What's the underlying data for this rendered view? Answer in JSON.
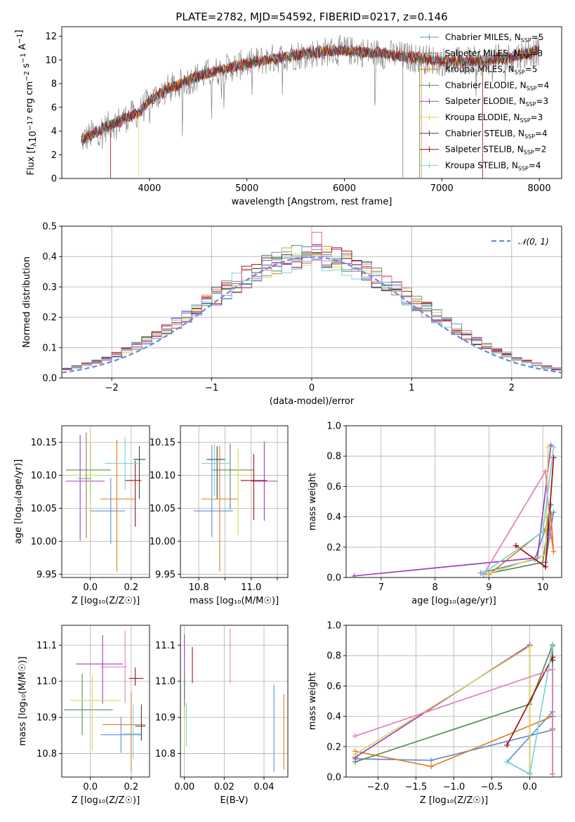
{
  "figure": {
    "title": "PLATE=2782, MJD=54592, FIBERID=0217, z=0.146"
  },
  "chart_data": [
    {
      "id": "spectrum",
      "type": "line",
      "xlabel": "wavelength [Angstrom, rest frame]",
      "ylabel": "Flux [f_λ 10^-17 erg cm^-2 s^-1 A^-1]",
      "xlim": [
        3100,
        8230
      ],
      "ylim": [
        0,
        12.8
      ],
      "xticks": [
        "4000",
        "5000",
        "6000",
        "7000",
        "8000"
      ],
      "yticks": [
        "0",
        "2",
        "4",
        "6",
        "8",
        "10",
        "12"
      ],
      "grid": false,
      "legend_position": "top-right",
      "continuum_x": [
        3300,
        3500,
        3700,
        3900,
        4000,
        4200,
        4500,
        4800,
        5000,
        5200,
        5500,
        5800,
        6000,
        6300,
        6500,
        6800,
        7100,
        7400,
        7700,
        8000
      ],
      "continuum_y": [
        3.2,
        4.1,
        4.9,
        5.6,
        6.6,
        7.6,
        8.6,
        9.3,
        9.7,
        10.0,
        10.4,
        10.7,
        10.8,
        10.6,
        10.4,
        10.1,
        9.8,
        9.9,
        10.2,
        10.8
      ],
      "series": [
        {
          "label": "Chabrier MILES, N",
          "sub": "SSP",
          "val": "=5",
          "color": "#5d8fd5"
        },
        {
          "label": "Salpeter MILES, N",
          "sub": "SSP",
          "val": "=3",
          "color": "#7f7f7f"
        },
        {
          "label": "Kroupa MILES, N",
          "sub": "SSP",
          "val": "=5",
          "color": "#e07f1f"
        },
        {
          "label": "Chabrier ELODIE, N",
          "sub": "SSP",
          "val": "=4",
          "color": "#5a8a5a"
        },
        {
          "label": "Salpeter ELODIE, N",
          "sub": "SSP",
          "val": "=3",
          "color": "#9d3fbf"
        },
        {
          "label": "Kroupa ELODIE, N",
          "sub": "SSP",
          "val": "=3",
          "color": "#d8d85a"
        },
        {
          "label": "Chabrier STELIB, N",
          "sub": "SSP",
          "val": "=4",
          "color": "#404040"
        },
        {
          "label": "Salpeter STELIB, N",
          "sub": "SSP",
          "val": "=2",
          "color": "#a01010"
        },
        {
          "label": "Kroupa STELIB, N",
          "sub": "SSP",
          "val": "=4",
          "color": "#78d4d8"
        }
      ]
    },
    {
      "id": "residuals",
      "type": "histogram",
      "xlabel": "(data-model)/error",
      "ylabel": "Normed distribution",
      "xlim": [
        -2.5,
        2.5
      ],
      "ylim": [
        0,
        0.5
      ],
      "xticks": [
        "−2",
        "−1",
        "0",
        "1",
        "2"
      ],
      "yticks": [
        "0.0",
        "0.1",
        "0.2",
        "0.3",
        "0.4",
        "0.5"
      ],
      "grid": true,
      "bin_width": 0.1,
      "legend_position": "top-right",
      "legend_label": "𝒩(0, 1)",
      "gaussian_color": "#5d8fd5",
      "spike_bin": {
        "x": 0.05,
        "value": 0.48,
        "color": "#e27fbf"
      },
      "hist_colors": [
        "#5d8fd5",
        "#7f7f7f",
        "#e07f1f",
        "#5a8a5a",
        "#9d3fbf",
        "#d8d85a",
        "#404040",
        "#a01010",
        "#78d4d8",
        "#e27fbf"
      ]
    },
    {
      "id": "age_vs_Z",
      "type": "errorbar",
      "xlabel": "Z [log₁₀(Z/Z☉)]",
      "ylabel": "age  [log₁₀(age/yr)]",
      "xlim": [
        -0.14,
        0.29
      ],
      "ylim": [
        9.945,
        10.175
      ],
      "xticks": [
        "0.0",
        "0.2"
      ],
      "yticks": [
        "9.95",
        "10.00",
        "10.05",
        "10.10",
        "10.15"
      ],
      "grid": true,
      "points": [
        {
          "x": 0.1,
          "y": 10.046,
          "xerr": [
            0.1,
            0.07
          ],
          "yerr": [
            0.05,
            0.05
          ],
          "color": "#5d8fd5"
        },
        {
          "x": 0.13,
          "y": 10.064,
          "xerr": [
            0.08,
            0.09
          ],
          "yerr": [
            0.11,
            0.09
          ],
          "color": "#e07f1f"
        },
        {
          "x": 0.0,
          "y": 10.108,
          "xerr": [
            0.12,
            0.1
          ],
          "yerr": [
            0.04,
            0.04
          ],
          "color": "#5a8a5a"
        },
        {
          "x": -0.05,
          "y": 10.091,
          "xerr": [
            0.07,
            0.12
          ],
          "yerr": [
            0.09,
            0.07
          ],
          "color": "#9d3fbf"
        },
        {
          "x": 0.0,
          "y": 10.1,
          "xerr": [
            0.1,
            0.05
          ],
          "yerr": [
            0.09,
            0.06
          ],
          "color": "#d8d85a"
        },
        {
          "x": 0.24,
          "y": 10.124,
          "xerr": [
            0.03,
            0.03
          ],
          "yerr": [
            0.06,
            0.02
          ],
          "color": "#404040"
        },
        {
          "x": 0.22,
          "y": 10.092,
          "xerr": [
            0.05,
            0.03
          ],
          "yerr": [
            0.07,
            0.03
          ],
          "color": "#a01010"
        },
        {
          "x": 0.17,
          "y": 10.118,
          "xerr": [
            0.1,
            0.08
          ],
          "yerr": [
            0.04,
            0.04
          ],
          "color": "#78d4d8"
        },
        {
          "x": -0.02,
          "y": 10.095,
          "xerr": [
            0.04,
            0.02
          ],
          "yerr": [
            0.09,
            0.07
          ],
          "color": "#7f7f7f"
        }
      ]
    },
    {
      "id": "age_vs_mass",
      "type": "errorbar",
      "xlabel": "mass [log₁₀(M/M☉)]",
      "ylabel": "",
      "xlim": [
        10.73,
        11.14
      ],
      "ylim": [
        9.945,
        10.175
      ],
      "xticks": [
        "10.8",
        "10.9",
        "11.0",
        "11.1"
      ],
      "xticks_labeled": [
        "10.8",
        "",
        "11.0",
        ""
      ],
      "yticks": [
        "9.95",
        "10.00",
        "10.05",
        "10.10",
        "10.15"
      ],
      "grid": true,
      "points": [
        {
          "x": 10.85,
          "y": 10.046,
          "xerr": [
            0.07,
            0.08
          ],
          "yerr": [
            0.04,
            0.1
          ],
          "color": "#5d8fd5"
        },
        {
          "x": 10.88,
          "y": 10.064,
          "xerr": [
            0.07,
            0.07
          ],
          "yerr": [
            0.11,
            0.08
          ],
          "color": "#e07f1f"
        },
        {
          "x": 10.92,
          "y": 10.108,
          "xerr": [
            0.07,
            0.09
          ],
          "yerr": [
            0.06,
            0.04
          ],
          "color": "#5a8a5a"
        },
        {
          "x": 11.05,
          "y": 10.091,
          "xerr": [
            0.05,
            0.05
          ],
          "yerr": [
            0.06,
            0.06
          ],
          "color": "#9d3fbf"
        },
        {
          "x": 10.95,
          "y": 10.1,
          "xerr": [
            0.03,
            0.05
          ],
          "yerr": [
            0.09,
            0.04
          ],
          "color": "#d8d85a"
        },
        {
          "x": 10.87,
          "y": 10.124,
          "xerr": [
            0.04,
            0.03
          ],
          "yerr": [
            0.06,
            0.02
          ],
          "color": "#404040"
        },
        {
          "x": 11.01,
          "y": 10.092,
          "xerr": [
            0.05,
            0.05
          ],
          "yerr": [
            0.06,
            0.04
          ],
          "color": "#a01010"
        },
        {
          "x": 10.86,
          "y": 10.118,
          "xerr": [
            0.05,
            0.06
          ],
          "yerr": [
            0.05,
            0.03
          ],
          "color": "#78d4d8"
        }
      ]
    },
    {
      "id": "massweight_vs_age",
      "type": "line",
      "xlabel": "age  [log₁₀(age/yr)]",
      "ylabel": "mass weight",
      "xlim": [
        6.35,
        10.35
      ],
      "ylim": [
        0,
        1
      ],
      "xticks": [
        "7",
        "8",
        "9",
        "10"
      ],
      "yticks": [
        "0.0",
        "0.2",
        "0.4",
        "0.6",
        "0.8",
        "1.0"
      ],
      "grid": true,
      "series": [
        {
          "color": "#5d8fd5",
          "x": [
            8.85,
            9.85,
            10.15,
            10.05,
            10.2
          ],
          "y": [
            0.03,
            0.12,
            0.42,
            0.1,
            0.43
          ]
        },
        {
          "color": "#e07f1f",
          "x": [
            9.0,
            10.05,
            10.1,
            10.2,
            10.15
          ],
          "y": [
            0.02,
            0.32,
            0.4,
            0.17,
            0.41
          ]
        },
        {
          "color": "#5a8a5a",
          "x": [
            8.9,
            10.0,
            10.15,
            10.1
          ],
          "y": [
            0.02,
            0.1,
            0.48,
            0.4
          ]
        },
        {
          "color": "#9d3fbf",
          "x": [
            6.5,
            9.9,
            10.15
          ],
          "y": [
            0.01,
            0.13,
            0.87
          ]
        },
        {
          "color": "#d8d85a",
          "x": [
            8.95,
            10.05,
            10.1
          ],
          "y": [
            0.02,
            0.15,
            0.86
          ]
        },
        {
          "color": "#a01010",
          "x": [
            9.5,
            10.05,
            10.2
          ],
          "y": [
            0.21,
            0.07,
            0.79
          ]
        },
        {
          "color": "#e27fbf",
          "x": [
            8.9,
            10.05,
            10.15
          ],
          "y": [
            0.02,
            0.7,
            0.27
          ]
        },
        {
          "color": "#78d4d8",
          "x": [
            8.9,
            10.0,
            10.2
          ],
          "y": [
            0.03,
            0.3,
            0.86
          ]
        }
      ]
    },
    {
      "id": "mass_vs_Z",
      "type": "errorbar",
      "xlabel": "Z [log₁₀(Z/Z☉)]",
      "ylabel": "mass [log₁₀(M/M☉)]",
      "xlim": [
        -0.14,
        0.29
      ],
      "ylim": [
        10.735,
        11.155
      ],
      "xticks": [
        "0.0",
        "0.2"
      ],
      "yticks": [
        "10.8",
        "10.9",
        "11.0",
        "11.1"
      ],
      "grid": true,
      "points": [
        {
          "x": 0.15,
          "y": 10.852,
          "xerr": [
            0.1,
            0.1
          ],
          "yerr": [
            0.05,
            0.05
          ],
          "color": "#5d8fd5"
        },
        {
          "x": 0.2,
          "y": 10.88,
          "xerr": [
            0.14,
            0.07
          ],
          "yerr": [
            0.13,
            0.09
          ],
          "color": "#e07f1f"
        },
        {
          "x": -0.04,
          "y": 10.921,
          "xerr": [
            0.09,
            0.15
          ],
          "yerr": [
            0.07,
            0.1
          ],
          "color": "#5a8a5a"
        },
        {
          "x": 0.06,
          "y": 11.048,
          "xerr": [
            0.13,
            0.1
          ],
          "yerr": [
            0.11,
            0.08
          ],
          "color": "#9d3fbf"
        },
        {
          "x": 0.01,
          "y": 10.947,
          "xerr": [
            0.11,
            0.14
          ],
          "yerr": [
            0.14,
            0.07
          ],
          "color": "#d8d85a"
        },
        {
          "x": 0.25,
          "y": 10.876,
          "xerr": [
            0.03,
            0.02
          ],
          "yerr": [
            0.04,
            0.06
          ],
          "color": "#404040"
        },
        {
          "x": 0.22,
          "y": 11.008,
          "xerr": [
            0.03,
            0.04
          ],
          "yerr": [
            0.02,
            0.03
          ],
          "color": "#a01010"
        },
        {
          "x": 0.21,
          "y": 10.855,
          "xerr": [
            0.05,
            0.04
          ],
          "yerr": [
            0.07,
            0.08
          ],
          "color": "#78d4d8"
        },
        {
          "x": 0.17,
          "y": 11.04,
          "xerr": [
            0.12,
            0.01
          ],
          "yerr": [
            0.1,
            0.1
          ],
          "color": "#e27fbf"
        }
      ]
    },
    {
      "id": "mass_vs_EBV",
      "type": "errorbar",
      "xlabel": "E(B-V)",
      "ylabel": "",
      "xlim": [
        -0.002,
        0.052
      ],
      "ylim": [
        10.735,
        11.155
      ],
      "xticks": [
        "0.00",
        "0.02",
        "0.04"
      ],
      "yticks": [
        "10.8",
        "10.9",
        "11.0",
        "11.1"
      ],
      "grid": true,
      "points": [
        {
          "x": 0.0,
          "y": 11.04,
          "yerr": [
            0.09,
            0.09
          ],
          "color": "#9d3fbf"
        },
        {
          "x": 0.0,
          "y": 10.95,
          "yerr": [
            0.05,
            0.06
          ],
          "color": "#5a8a5a"
        },
        {
          "x": 0.0,
          "y": 10.88,
          "yerr": [
            0.06,
            0.05
          ],
          "color": "#d8d85a"
        },
        {
          "x": 0.001,
          "y": 10.87,
          "yerr": [
            0.05,
            0.07
          ],
          "color": "#78d4d8"
        },
        {
          "x": 0.004,
          "y": 11.045,
          "yerr": [
            0.05,
            0.05
          ],
          "color": "#a01010"
        },
        {
          "x": 0.023,
          "y": 11.065,
          "yerr": [
            0.07,
            0.08
          ],
          "color": "#e27fbf"
        },
        {
          "x": 0.045,
          "y": 10.87,
          "yerr": [
            0.12,
            0.12
          ],
          "color": "#5d8fd5"
        },
        {
          "x": 0.05,
          "y": 10.855,
          "yerr": [
            0.1,
            0.11
          ],
          "color": "#e07f1f"
        }
      ]
    },
    {
      "id": "massweight_vs_Z",
      "type": "line",
      "xlabel": "Z [log₁₀(Z/Z☉)]",
      "ylabel": "mass weight",
      "xlim": [
        -2.42,
        0.42
      ],
      "ylim": [
        0,
        1
      ],
      "xticks": [
        "−2.0",
        "−1.5",
        "−1.0",
        "−0.5",
        "0.0"
      ],
      "yticks": [
        "0.0",
        "0.2",
        "0.4",
        "0.6",
        "0.8",
        "1.0"
      ],
      "grid": true,
      "series": [
        {
          "color": "#5d8fd5",
          "x": [
            -2.3,
            -1.3,
            0.3,
            0.3,
            -0.3,
            0.0
          ],
          "y": [
            0.12,
            0.11,
            0.31,
            0.43,
            0.1,
            0.02
          ]
        },
        {
          "color": "#e07f1f",
          "x": [
            -2.3,
            -1.3,
            0.3,
            0.3,
            0.3
          ],
          "y": [
            0.17,
            0.07,
            0.4,
            0.32,
            0.02
          ]
        },
        {
          "color": "#5a8a5a",
          "x": [
            -2.3,
            0.0,
            0.3,
            0.3
          ],
          "y": [
            0.1,
            0.48,
            0.87,
            0.4
          ]
        },
        {
          "color": "#9d3fbf",
          "x": [
            -2.3,
            0.0,
            0.0
          ],
          "y": [
            0.13,
            0.87,
            0.02
          ]
        },
        {
          "color": "#d8d85a",
          "x": [
            -2.3,
            0.0,
            0.0
          ],
          "y": [
            0.15,
            0.86,
            0.03
          ]
        },
        {
          "color": "#a01010",
          "x": [
            -0.3,
            0.3,
            0.3
          ],
          "y": [
            0.21,
            0.79,
            0.77
          ]
        },
        {
          "color": "#e27fbf",
          "x": [
            -2.3,
            0.3,
            0.3
          ],
          "y": [
            0.27,
            0.71,
            0.02
          ]
        },
        {
          "color": "#78d4d8",
          "x": [
            -0.3,
            0.0,
            0.3
          ],
          "y": [
            0.1,
            0.02,
            0.86
          ]
        }
      ]
    }
  ]
}
